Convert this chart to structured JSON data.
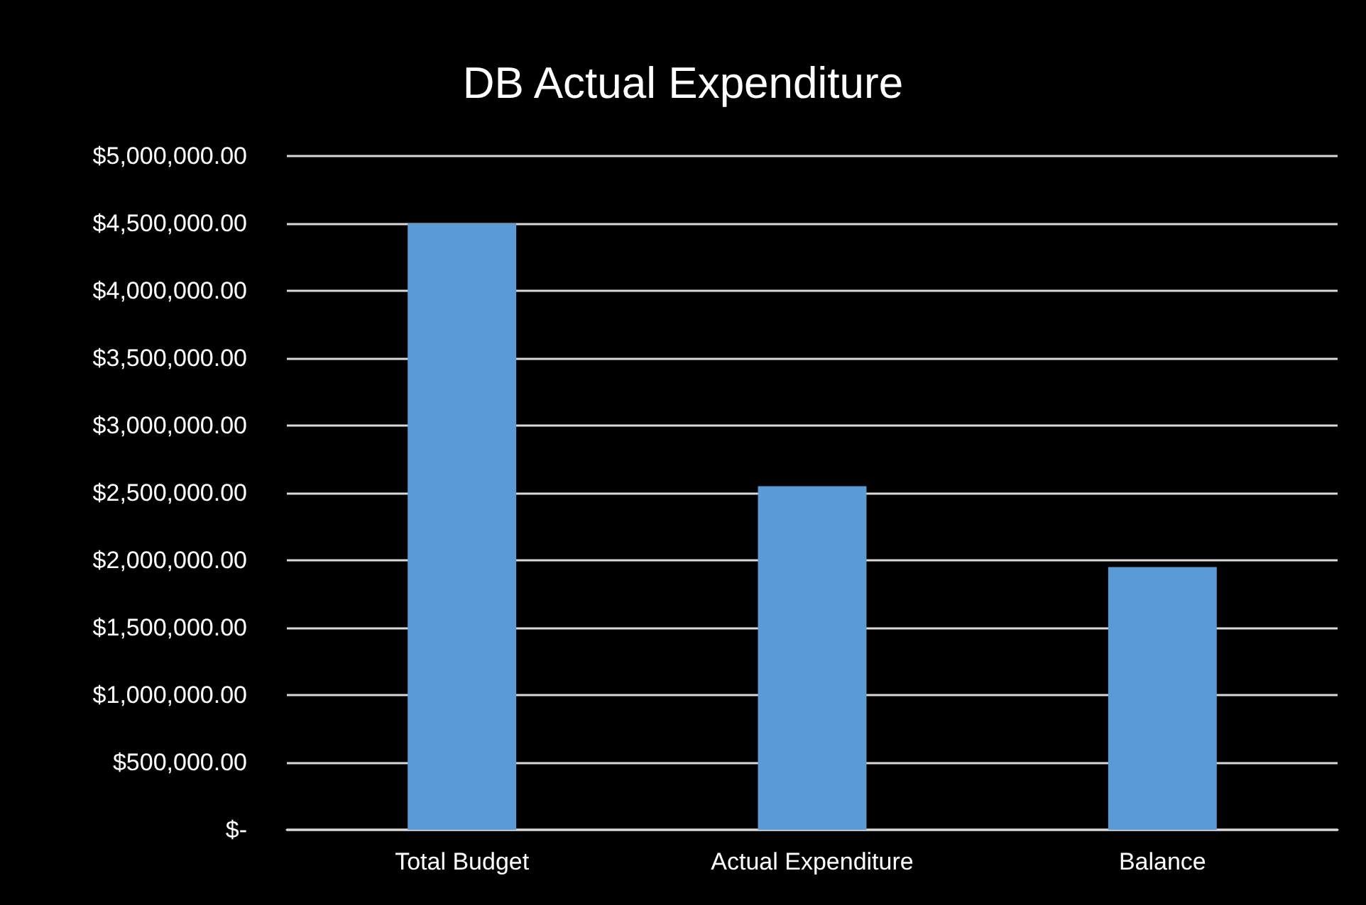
{
  "chart_data": {
    "type": "bar",
    "title": "DB Actual Expenditure",
    "categories": [
      "Total Budget",
      "Actual Expenditure",
      "Balance"
    ],
    "values": [
      4500000,
      2550000,
      1950000
    ],
    "color": "#5b9bd5",
    "ylim": [
      0,
      5000000
    ],
    "yticks": [
      {
        "value": 0,
        "label": "$-"
      },
      {
        "value": 500000,
        "label": "$500,000.00"
      },
      {
        "value": 1000000,
        "label": "$1,000,000.00"
      },
      {
        "value": 1500000,
        "label": "$1,500,000.00"
      },
      {
        "value": 2000000,
        "label": "$2,000,000.00"
      },
      {
        "value": 2500000,
        "label": "$2,500,000.00"
      },
      {
        "value": 3000000,
        "label": "$3,000,000.00"
      },
      {
        "value": 3500000,
        "label": "$3,500,000.00"
      },
      {
        "value": 4000000,
        "label": "$4,000,000.00"
      },
      {
        "value": 4500000,
        "label": "$4,500,000.00"
      },
      {
        "value": 5000000,
        "label": "$5,000,000.00"
      }
    ],
    "grid": true
  }
}
